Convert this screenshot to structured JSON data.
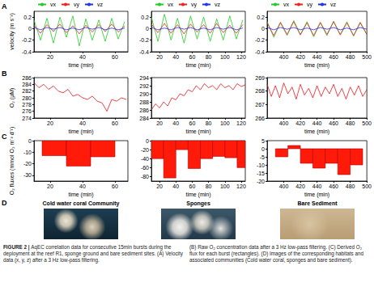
{
  "chart_data": [
    {
      "type": "line",
      "xlabel": "time (min)",
      "ylabel": "velocity (m s⁻¹)",
      "legend": "top",
      "grid": false,
      "xlim": [
        10,
        68
      ],
      "xticks": [
        20,
        40,
        60
      ],
      "ylim": [
        -0.4,
        0.3
      ],
      "yticks": [
        -0.4,
        -0.2,
        0,
        0.2
      ],
      "x": [
        10,
        14,
        18,
        22,
        26,
        30,
        34,
        38,
        42,
        46,
        50,
        54,
        58,
        62,
        66
      ],
      "series": [
        {
          "name": "vx",
          "color": "#22cc22",
          "values": [
            0.15,
            -0.2,
            0.18,
            -0.25,
            0.2,
            -0.15,
            0.22,
            -0.3,
            0.17,
            -0.2,
            0.15,
            -0.22,
            0.18,
            -0.18,
            0.12
          ]
        },
        {
          "name": "vy",
          "color": "#ee2222",
          "values": [
            0.06,
            -0.08,
            0.07,
            -0.05,
            0.08,
            -0.07,
            0.05,
            -0.09,
            0.06,
            -0.06,
            0.07,
            -0.05,
            0.08,
            -0.06,
            0.05
          ]
        },
        {
          "name": "vz",
          "color": "#2233ee",
          "values": [
            0.02,
            -0.02,
            0.02,
            -0.01,
            0.02,
            -0.02,
            0.01,
            -0.02,
            0.02,
            -0.01,
            0.02,
            -0.02,
            0.01,
            -0.02,
            0.01
          ]
        }
      ]
    },
    {
      "type": "line",
      "xlabel": "time (min)",
      "legend": "top",
      "grid": false,
      "xlim": [
        10,
        125
      ],
      "xticks": [
        20,
        40,
        60,
        80,
        100,
        120
      ],
      "ylim": [
        -0.4,
        0.3
      ],
      "yticks": [
        -0.4,
        -0.2,
        0,
        0.2
      ],
      "x": [
        10,
        18,
        26,
        34,
        42,
        50,
        58,
        66,
        74,
        82,
        90,
        98,
        106,
        114,
        122
      ],
      "series": [
        {
          "name": "vx",
          "color": "#22cc22",
          "values": [
            0.2,
            -0.22,
            0.25,
            -0.2,
            0.18,
            -0.25,
            0.22,
            -0.18,
            0.2,
            -0.22,
            0.17,
            -0.2,
            0.22,
            -0.18,
            0.15
          ]
        },
        {
          "name": "vy",
          "color": "#ee2222",
          "values": [
            0.08,
            -0.07,
            0.09,
            -0.08,
            0.07,
            -0.09,
            0.08,
            -0.06,
            0.07,
            -0.08,
            0.09,
            -0.07,
            0.06,
            -0.08,
            0.07
          ]
        },
        {
          "name": "vz",
          "color": "#2233ee",
          "values": [
            0.02,
            -0.02,
            0.01,
            -0.02,
            0.02,
            -0.01,
            0.02,
            -0.02,
            0.01,
            -0.02,
            0.02,
            -0.01,
            0.02,
            -0.02,
            0.01
          ]
        }
      ]
    },
    {
      "type": "line",
      "xlabel": "time (min)",
      "legend": "top",
      "grid": false,
      "xlim": [
        380,
        500
      ],
      "xticks": [
        400,
        420,
        440,
        460,
        480,
        500
      ],
      "ylim": [
        -0.4,
        0.3
      ],
      "yticks": [
        -0.4,
        -0.2,
        0,
        0.2
      ],
      "x": [
        380,
        388,
        396,
        404,
        412,
        420,
        428,
        436,
        444,
        452,
        460,
        468,
        476,
        484,
        492,
        500
      ],
      "series": [
        {
          "name": "vx",
          "color": "#22cc22",
          "values": [
            0.12,
            -0.15,
            0.1,
            -0.12,
            0.14,
            -0.1,
            0.12,
            -0.14,
            0.1,
            -0.12,
            0.13,
            -0.1,
            0.12,
            -0.13,
            0.1,
            -0.1
          ]
        },
        {
          "name": "vy",
          "color": "#ee2222",
          "values": [
            0.1,
            -0.12,
            0.11,
            -0.1,
            0.12,
            -0.11,
            0.1,
            -0.12,
            0.11,
            -0.1,
            0.12,
            -0.11,
            0.1,
            -0.12,
            0.11,
            -0.1
          ]
        },
        {
          "name": "vz",
          "color": "#2233ee",
          "values": [
            0.02,
            -0.02,
            0.02,
            -0.01,
            0.02,
            -0.02,
            0.01,
            -0.02,
            0.02,
            -0.01,
            0.02,
            -0.02,
            0.01,
            -0.02,
            0.02,
            -0.01
          ]
        }
      ]
    },
    {
      "type": "line",
      "xlabel": "time (min)",
      "ylabel": "O₂ (µM)",
      "grid": false,
      "xlim": [
        10,
        68
      ],
      "xticks": [
        20,
        40,
        60
      ],
      "ylim": [
        274,
        286
      ],
      "yticks": [
        274,
        276,
        278,
        280,
        282,
        284,
        286
      ],
      "x": [
        10,
        13,
        16,
        19,
        22,
        25,
        28,
        31,
        34,
        37,
        40,
        43,
        46,
        49,
        52,
        55,
        58,
        61,
        64,
        67
      ],
      "series": [
        {
          "name": "O₂",
          "color": "#e8141b",
          "values": [
            284.5,
            283,
            284,
            282.5,
            283.5,
            282,
            281.5,
            282.5,
            280.5,
            281,
            280,
            279.5,
            280.5,
            279,
            278.5,
            276,
            279.5,
            279,
            280,
            279.5
          ]
        }
      ]
    },
    {
      "type": "line",
      "xlabel": "time (min)",
      "grid": false,
      "xlim": [
        10,
        125
      ],
      "xticks": [
        20,
        40,
        60,
        80,
        100,
        120
      ],
      "ylim": [
        284,
        294
      ],
      "yticks": [
        284,
        286,
        288,
        290,
        292,
        294
      ],
      "x": [
        10,
        15,
        20,
        25,
        30,
        35,
        40,
        45,
        50,
        55,
        60,
        65,
        70,
        75,
        80,
        85,
        90,
        95,
        100,
        105,
        110,
        115,
        120,
        125
      ],
      "series": [
        {
          "name": "O₂",
          "color": "#e8141b",
          "values": [
            286,
            287.5,
            286.5,
            288,
            287,
            289,
            288.5,
            290,
            289.5,
            291,
            290.5,
            292,
            291,
            292.5,
            291.5,
            292,
            291,
            292.5,
            291.5,
            292,
            291,
            292.5,
            291.8,
            292.2
          ]
        }
      ]
    },
    {
      "type": "line",
      "xlabel": "time (min)",
      "grid": false,
      "xlim": [
        380,
        500
      ],
      "xticks": [
        400,
        420,
        440,
        460,
        480,
        500
      ],
      "ylim": [
        266,
        269
      ],
      "yticks": [
        266,
        267,
        268,
        269
      ],
      "x": [
        380,
        385,
        390,
        395,
        400,
        405,
        410,
        415,
        420,
        425,
        430,
        435,
        440,
        445,
        450,
        455,
        460,
        465,
        470,
        475,
        480,
        485,
        490,
        495,
        500
      ],
      "series": [
        {
          "name": "O₂",
          "color": "#e8141b",
          "values": [
            268.5,
            267.6,
            268.4,
            267.5,
            268.6,
            267.8,
            268.3,
            267.4,
            268.5,
            267.7,
            268.2,
            267.5,
            268.4,
            267.6,
            268.3,
            267.8,
            268.5,
            267.6,
            268.2,
            267.4,
            268.3,
            267.7,
            268.4,
            267.6,
            268.1
          ]
        }
      ]
    },
    {
      "type": "bar",
      "xlabel": "time (min)",
      "ylabel": "O₂ fluxes (mmol O₂ m⁻² d⁻¹)",
      "grid": false,
      "color": "#ff1a0a",
      "xlim": [
        10,
        68
      ],
      "xticks": [
        20,
        40,
        60
      ],
      "ylim": [
        -35,
        0
      ],
      "yticks": [
        -30,
        -20,
        -10,
        0
      ],
      "bins": [
        15,
        30,
        45,
        60
      ],
      "values": [
        -13,
        -22,
        -14
      ]
    },
    {
      "type": "bar",
      "xlabel": "time (min)",
      "grid": false,
      "color": "#ff1a0a",
      "xlim": [
        10,
        125
      ],
      "xticks": [
        20,
        40,
        60,
        80,
        100,
        120
      ],
      "ylim": [
        -90,
        0
      ],
      "yticks": [
        -80,
        -60,
        -40,
        -20,
        0
      ],
      "bins": [
        10,
        25,
        40,
        55,
        70,
        85,
        100,
        115,
        125
      ],
      "values": [
        -40,
        -83,
        -20,
        -62,
        -40,
        -35,
        -38,
        -60
      ]
    },
    {
      "type": "bar",
      "xlabel": "time (min)",
      "grid": false,
      "color": "#ff1a0a",
      "xlim": [
        380,
        500
      ],
      "xticks": [
        400,
        420,
        440,
        460,
        480,
        500
      ],
      "ylim": [
        -20,
        5
      ],
      "yticks": [
        -20,
        -15,
        -10,
        -5,
        0,
        5
      ],
      "bins": [
        390,
        405,
        420,
        435,
        450,
        465,
        480,
        495
      ],
      "values": [
        -5,
        2,
        -9,
        -12,
        -9,
        -16,
        -10
      ]
    }
  ],
  "figure": {
    "panel_labels": [
      "A",
      "B",
      "C",
      "D"
    ],
    "habitats": [
      "Cold water coral Community",
      "Sponges",
      "Bare Sediment"
    ],
    "caption": {
      "label": "FIGURE 2 |",
      "left": "AqEC correlation data for consecutive 15min bursts during the deployment at the reef R1, sponge ground and bare sediment sites. (A) Velocity data (x, y, z) after a 3 Hz low-pass filtering.",
      "right": "(B) Raw O₂ concentration data after a 3 Hz low-pass filtering. (C) Derived O₂ flux for each burst (rectangles). (D) Images of the corresponding habitats and associated communities (Cold water coral, sponges and bare sediment)."
    }
  }
}
